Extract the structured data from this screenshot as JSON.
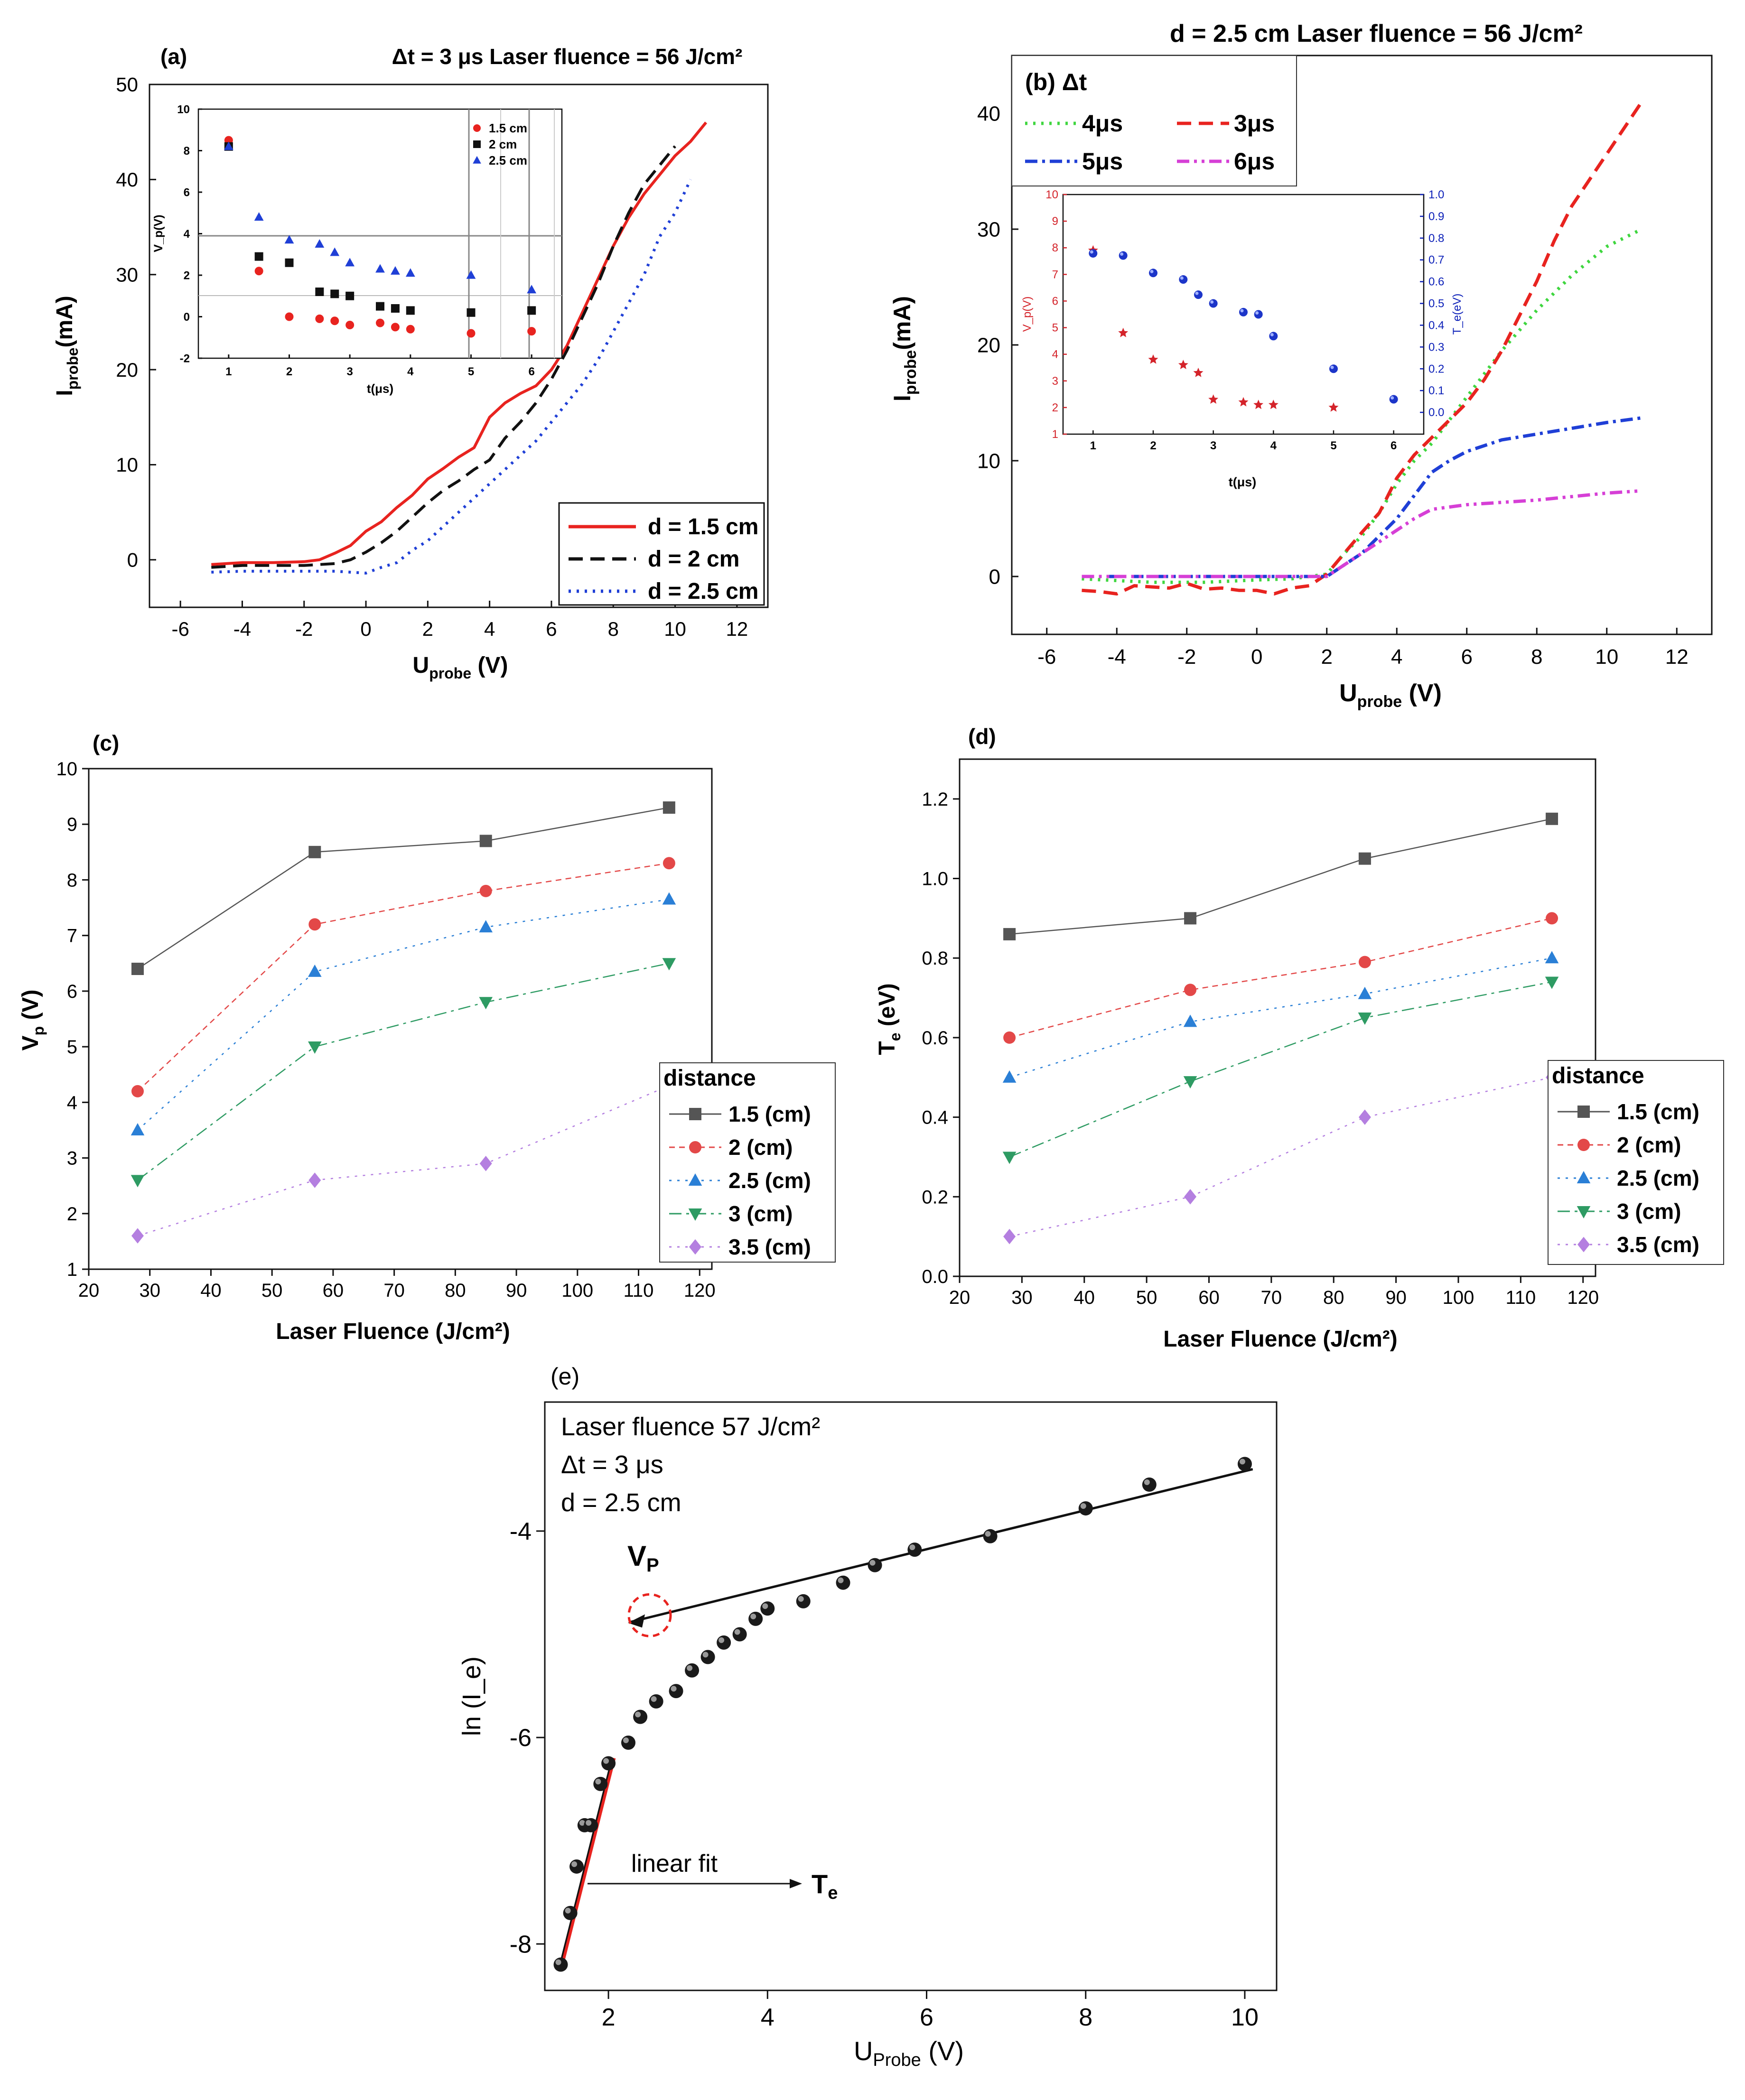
{
  "colors": {
    "red": "#e8231f",
    "black": "#111111",
    "blue": "#1f3fd6",
    "green": "#3fd63f",
    "magenta": "#d63fd6",
    "gray": "#555555",
    "cred": "#e34848",
    "cblue": "#2a7fd6",
    "cgreen": "#2e9b63",
    "cviolet": "#b47fe0",
    "navy": "#0b1fb8",
    "star": "#d4232a"
  },
  "chart_data": [
    {
      "id": "a",
      "type": "line",
      "panel_label": "(a)",
      "title": "Δt = 3 μs Laser fluence = 56 J/cm²",
      "xlabel_main": "U",
      "xlabel_sub": "probe",
      "xlabel_unit": " (V)",
      "ylabel_main": "I",
      "ylabel_sub": "probe",
      "ylabel_unit": "(mA)",
      "xlim": [
        -7,
        13
      ],
      "ylim": [
        -5,
        50
      ],
      "xticks": [
        -6,
        -4,
        -2,
        0,
        2,
        4,
        6,
        8,
        10,
        12
      ],
      "yticks": [
        0,
        10,
        20,
        30,
        40,
        50
      ],
      "series": [
        {
          "name": "d = 1.5 cm",
          "color": "red",
          "dash": "solid",
          "x": [
            -5,
            -4,
            -3,
            -2,
            -1.5,
            -1,
            -0.5,
            0,
            0.5,
            1,
            1.5,
            2,
            2.5,
            3,
            3.5,
            4,
            4.5,
            5,
            5.5,
            6,
            6.5,
            7,
            7.5,
            8,
            8.5,
            9,
            9.5,
            10,
            10.5,
            11
          ],
          "y": [
            -0.5,
            -0.3,
            -0.3,
            -0.2,
            0,
            0.7,
            1.5,
            3,
            4,
            5.5,
            6.8,
            8.5,
            9.6,
            10.8,
            11.8,
            15,
            16.5,
            17.5,
            18.3,
            20,
            22.5,
            26,
            29.5,
            33,
            36,
            38.5,
            40.5,
            42.5,
            44,
            46
          ]
        },
        {
          "name": "d = 2 cm",
          "color": "black",
          "dash": "long",
          "x": [
            -5,
            -4,
            -3,
            -2,
            -1,
            -0.5,
            0,
            0.5,
            1,
            1.5,
            2,
            2.5,
            3,
            3.5,
            4,
            4.5,
            5,
            5.5,
            6,
            6.5,
            7,
            7.5,
            8,
            8.5,
            9,
            9.5,
            10
          ],
          "y": [
            -0.8,
            -0.6,
            -0.6,
            -0.6,
            -0.4,
            0,
            0.8,
            1.8,
            3,
            4.5,
            6,
            7.3,
            8.3,
            9.5,
            10.5,
            12.8,
            14.5,
            16.5,
            19,
            22,
            25.5,
            29,
            33,
            36.5,
            39.5,
            41.5,
            43.5
          ]
        },
        {
          "name": "d = 2.5 cm",
          "color": "blue",
          "dash": "dot",
          "x": [
            -5,
            -4,
            -3,
            -2,
            -1,
            0,
            0.5,
            1,
            1.5,
            2,
            2.5,
            3,
            3.5,
            4,
            4.5,
            5,
            5.5,
            6,
            6.5,
            7,
            7.5,
            8,
            8.5,
            9,
            9.5,
            10,
            10.5
          ],
          "y": [
            -1.3,
            -1.2,
            -1.2,
            -1.2,
            -1.2,
            -1.4,
            -0.8,
            -0.3,
            1,
            2,
            3.5,
            5,
            6.5,
            8,
            9.5,
            11,
            12.5,
            14.5,
            16.5,
            18.5,
            21,
            24,
            27,
            30,
            34,
            36.5,
            40
          ]
        }
      ],
      "legend": [
        "d = 1.5 cm",
        "d = 2 cm",
        "d = 2.5 cm"
      ],
      "inset": {
        "ylabel": "V_p(V)",
        "xlabel": "t(μs)",
        "xlim": [
          0.5,
          6.5
        ],
        "ylim": [
          -2,
          10
        ],
        "xticks": [
          1,
          2,
          3,
          4,
          5,
          6
        ],
        "yticks": [
          -2,
          0,
          2,
          4,
          6,
          8,
          10
        ],
        "series": [
          {
            "name": "1.5 cm",
            "marker": "circle",
            "color": "red",
            "x": [
              1,
              1.5,
              2,
              2.5,
              2.75,
              3,
              3.5,
              3.75,
              4,
              5,
              6
            ],
            "y": [
              8.5,
              2.2,
              0,
              -0.1,
              -0.2,
              -0.4,
              -0.3,
              -0.5,
              -0.6,
              -0.8,
              -0.7
            ]
          },
          {
            "name": "2 cm",
            "marker": "square",
            "color": "black",
            "x": [
              1,
              1.5,
              2,
              2.5,
              2.75,
              3,
              3.5,
              3.75,
              4,
              5,
              6
            ],
            "y": [
              8.2,
              2.9,
              2.6,
              1.2,
              1.1,
              1,
              0.5,
              0.4,
              0.3,
              0.2,
              0.3
            ]
          },
          {
            "name": "2.5 cm",
            "marker": "triangle",
            "color": "blue",
            "x": [
              1,
              1.5,
              2,
              2.5,
              2.75,
              3,
              3.5,
              3.75,
              4,
              5,
              6
            ],
            "y": [
              8.2,
              4.8,
              3.7,
              3.5,
              3.1,
              2.6,
              2.3,
              2.2,
              2.1,
              2,
              1.3
            ]
          }
        ]
      }
    },
    {
      "id": "b",
      "type": "line",
      "title": "d = 2.5 cm  Laser fluence = 56 J/cm²",
      "legend_title": "(b) Δt",
      "xlabel_main": "U",
      "xlabel_sub": "probe",
      "xlabel_unit": " (V)",
      "ylabel_main": "I",
      "ylabel_sub": "probe",
      "ylabel_unit": "(mA)",
      "xlim": [
        -7,
        13
      ],
      "ylim": [
        -5,
        45
      ],
      "xticks": [
        -6,
        -4,
        -2,
        0,
        2,
        4,
        6,
        8,
        10,
        12
      ],
      "yticks": [
        0,
        10,
        20,
        30,
        40
      ],
      "series": [
        {
          "name": "4μs",
          "color": "green",
          "dash": "dot",
          "x": [
            -5,
            -3,
            -1.5,
            0,
            1,
            1.5,
            2,
            2.5,
            3,
            3.5,
            4,
            4.5,
            5,
            5.5,
            6,
            7,
            8,
            9,
            10,
            11
          ],
          "y": [
            -0.2,
            -0.5,
            -0.5,
            -0.3,
            -0.2,
            0,
            0.2,
            2,
            3.5,
            5.5,
            8,
            10,
            11.5,
            13.5,
            15.5,
            19.5,
            23,
            26,
            28.5,
            30
          ]
        },
        {
          "name": "3μs",
          "color": "red",
          "dash": "long",
          "x": [
            -5,
            -4.5,
            -4,
            -3.5,
            -3,
            -2.5,
            -2,
            -1.5,
            -1,
            -0.5,
            0,
            0.5,
            1,
            1.5,
            2,
            2.5,
            3,
            3.5,
            4,
            4.5,
            5,
            5.5,
            6,
            6.5,
            7,
            7.5,
            8,
            8.5,
            9,
            10,
            11
          ],
          "y": [
            -1.2,
            -1.3,
            -1.5,
            -0.8,
            -0.9,
            -1,
            -0.6,
            -1.1,
            -1,
            -1.2,
            -1.2,
            -1.5,
            -1,
            -0.8,
            0.2,
            2,
            3.8,
            5.5,
            8.5,
            10.5,
            12,
            13.5,
            15,
            17,
            19.5,
            22.5,
            25.5,
            29,
            32,
            36.5,
            41
          ]
        },
        {
          "name": "5μs",
          "color": "blue",
          "dash": "dashdot",
          "x": [
            -5,
            -3,
            -1,
            0,
            1,
            2,
            2.5,
            3,
            3.5,
            4,
            4.5,
            5,
            5.5,
            6,
            7,
            8,
            9,
            10,
            11
          ],
          "y": [
            0,
            0,
            0,
            0,
            0,
            0,
            1,
            2,
            3.5,
            5,
            7,
            9,
            10,
            10.8,
            11.8,
            12.3,
            12.8,
            13.3,
            13.7
          ]
        },
        {
          "name": "6μs",
          "color": "magenta",
          "dash": "dashdotdot",
          "x": [
            -5,
            -3,
            -1,
            0,
            1,
            2,
            2.5,
            3,
            3.5,
            4,
            4.5,
            5,
            5.5,
            6,
            7,
            8,
            9,
            10,
            11
          ],
          "y": [
            0,
            0,
            0,
            0,
            0,
            0,
            1,
            2,
            3,
            4,
            5,
            5.8,
            6,
            6.2,
            6.4,
            6.6,
            6.9,
            7.2,
            7.4
          ]
        }
      ],
      "legend": [
        "4μs",
        "3μs",
        "5μs",
        "6μs"
      ],
      "inset": {
        "ylabel_left": "V_p(V)",
        "ylabel_right": "T_e(eV)",
        "xlabel": "t(μs)",
        "xlim": [
          0.5,
          6.5
        ],
        "ylim_left": [
          1,
          10
        ],
        "ylim_right": [
          -0.1,
          1.0
        ],
        "xticks": [
          1,
          2,
          3,
          4,
          5,
          6
        ],
        "yticks_left": [
          1,
          2,
          3,
          4,
          5,
          6,
          7,
          8,
          9,
          10
        ],
        "yticks_right": [
          "0.0",
          "0.1",
          "0.2",
          "0.3",
          "0.4",
          "0.5",
          "0.6",
          "0.7",
          "0.8",
          "0.9",
          "1.0"
        ],
        "vp_series": {
          "marker": "star",
          "x": [
            1,
            1.5,
            2,
            2.5,
            2.75,
            3,
            3.5,
            3.75,
            4,
            5
          ],
          "y": [
            7.9,
            4.8,
            3.8,
            3.6,
            3.3,
            2.3,
            2.2,
            2.1,
            2.1,
            2
          ]
        },
        "te_series": {
          "marker": "circle",
          "x": [
            1,
            1.5,
            2,
            2.5,
            2.75,
            3,
            3.5,
            3.75,
            4,
            5,
            6
          ],
          "y": [
            0.73,
            0.72,
            0.64,
            0.61,
            0.54,
            0.5,
            0.46,
            0.45,
            0.35,
            0.2,
            0.06
          ]
        }
      }
    },
    {
      "id": "c",
      "type": "line",
      "panel_label": "(c)",
      "ylabel_main": "V",
      "ylabel_sub": "p",
      "ylabel_unit": " (V)",
      "xlabel": "Laser Fluence (J/cm²)",
      "xlim": [
        20,
        122
      ],
      "ylim": [
        1,
        10
      ],
      "xticks": [
        20,
        30,
        40,
        50,
        60,
        70,
        80,
        90,
        100,
        110,
        120
      ],
      "yticks": [
        1,
        2,
        3,
        4,
        5,
        6,
        7,
        8,
        9,
        10
      ],
      "x": [
        28,
        57,
        85,
        115
      ],
      "series": [
        {
          "name": "1.5 (cm)",
          "marker": "square",
          "color": "gray",
          "dash": "solid",
          "values": [
            6.4,
            8.5,
            8.7,
            9.3
          ]
        },
        {
          "name": "2 (cm)",
          "marker": "circle",
          "color": "cred",
          "dash": "dash",
          "values": [
            4.2,
            7.2,
            7.8,
            8.3
          ]
        },
        {
          "name": "2.5 (cm)",
          "marker": "triangle",
          "color": "cblue",
          "dash": "dot",
          "values": [
            3.5,
            6.35,
            7.15,
            7.65
          ]
        },
        {
          "name": "3 (cm)",
          "marker": "tridown",
          "color": "cgreen",
          "dash": "dashdot",
          "values": [
            2.6,
            5.0,
            5.8,
            6.5
          ]
        },
        {
          "name": "3.5 (cm)",
          "marker": "diamond",
          "color": "cviolet",
          "dash": "dot",
          "values": [
            1.6,
            2.6,
            2.9,
            4.3
          ]
        }
      ],
      "legend_title": "distance"
    },
    {
      "id": "d",
      "type": "line",
      "panel_label": "(d)",
      "ylabel_main": "T",
      "ylabel_sub": "e",
      "ylabel_unit": " (eV)",
      "xlabel": "Laser Fluence (J/cm²)",
      "xlim": [
        20,
        122
      ],
      "ylim": [
        0,
        1.3
      ],
      "xticks": [
        20,
        30,
        40,
        50,
        60,
        70,
        80,
        90,
        100,
        110,
        120
      ],
      "yticks": [
        "0.0",
        "0.2",
        "0.4",
        "0.6",
        "0.8",
        "1.0",
        "1.2"
      ],
      "x": [
        28,
        57,
        85,
        115
      ],
      "series": [
        {
          "name": "1.5 (cm)",
          "marker": "square",
          "color": "gray",
          "dash": "solid",
          "values": [
            0.86,
            0.9,
            1.05,
            1.15
          ]
        },
        {
          "name": "2 (cm)",
          "marker": "circle",
          "color": "cred",
          "dash": "dash",
          "values": [
            0.6,
            0.72,
            0.79,
            0.9
          ]
        },
        {
          "name": "2.5 (cm)",
          "marker": "triangle",
          "color": "cblue",
          "dash": "dot",
          "values": [
            0.5,
            0.64,
            0.71,
            0.8
          ]
        },
        {
          "name": "3 (cm)",
          "marker": "tridown",
          "color": "cgreen",
          "dash": "dashdot",
          "values": [
            0.3,
            0.49,
            0.65,
            0.74
          ]
        },
        {
          "name": "3.5 (cm)",
          "marker": "diamond",
          "color": "cviolet",
          "dash": "dot",
          "values": [
            0.1,
            0.2,
            0.4,
            0.5
          ]
        }
      ],
      "legend_title": "distance"
    },
    {
      "id": "e",
      "type": "scatter",
      "panel_label": "(e)",
      "annotation_lines": [
        "Laser fluence 57 J/cm²",
        "Δt = 3 μs",
        "d = 2.5 cm"
      ],
      "ylabel": "ln (I_e)",
      "xlabel_main": "U",
      "xlabel_sub": "Probe",
      "xlabel_unit": " (V)",
      "xlim": [
        1.2,
        10.4
      ],
      "ylim": [
        -8.45,
        -2.75
      ],
      "xticks": [
        2,
        4,
        6,
        8,
        10
      ],
      "yticks": [
        -4,
        -6,
        -8
      ],
      "points": {
        "x": [
          1.4,
          1.52,
          1.6,
          1.7,
          1.78,
          1.9,
          2.0,
          2.25,
          2.4,
          2.6,
          2.85,
          3.05,
          3.25,
          3.45,
          3.65,
          3.85,
          4.0,
          4.45,
          4.95,
          5.35,
          5.85,
          6.8,
          8.0,
          8.8,
          10.0
        ],
        "y": [
          -8.2,
          -7.7,
          -7.25,
          -6.85,
          -6.85,
          -6.45,
          -6.25,
          -6.05,
          -5.8,
          -5.65,
          -5.55,
          -5.35,
          -5.22,
          -5.08,
          -5.0,
          -4.85,
          -4.75,
          -4.68,
          -4.5,
          -4.33,
          -4.18,
          -4.05,
          -3.78,
          -3.55,
          -3.35
        ]
      },
      "fit_low": {
        "x": [
          1.38,
          2.05
        ],
        "y": [
          -8.25,
          -6.2
        ]
      },
      "fit_high": {
        "x": [
          2.28,
          10.1
        ],
        "y": [
          -4.88,
          -3.4
        ]
      },
      "labels": {
        "vp_main": "V",
        "vp_sub": "P",
        "fit_text": "linear fit",
        "te_main": "T",
        "te_sub": "e"
      }
    }
  ]
}
